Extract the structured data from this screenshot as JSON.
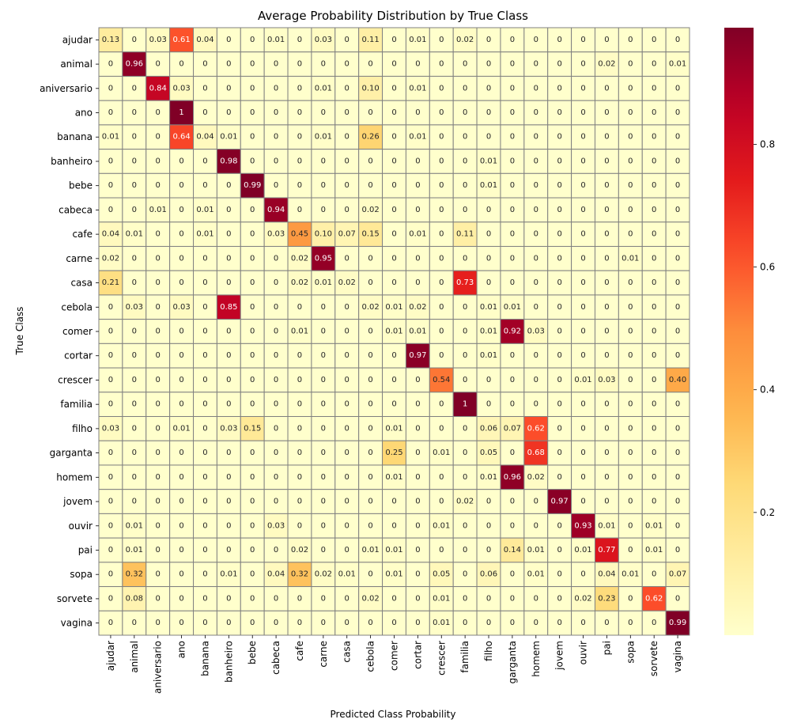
{
  "chart_data": {
    "type": "heatmap",
    "title": "Average Probability Distribution by True Class",
    "xlabel": "Predicted Class Probability",
    "ylabel": "True Class",
    "classes": [
      "ajudar",
      "animal",
      "aniversario",
      "ano",
      "banana",
      "banheiro",
      "bebe",
      "cabeca",
      "cafe",
      "carne",
      "casa",
      "cebola",
      "comer",
      "cortar",
      "crescer",
      "familia",
      "filho",
      "garganta",
      "homem",
      "jovem",
      "ouvir",
      "pai",
      "sopa",
      "sorvete",
      "vagina"
    ],
    "cell_labels": [
      [
        "0.13",
        "0",
        "0.03",
        "0.61",
        "0.04",
        "0",
        "0",
        "0.01",
        "0",
        "0.03",
        "0",
        "0.11",
        "0",
        "0.01",
        "0",
        "0.02",
        "0",
        "0",
        "0",
        "0",
        "0",
        "0",
        "0",
        "0",
        "0"
      ],
      [
        "0",
        "0.96",
        "0",
        "0",
        "0",
        "0",
        "0",
        "0",
        "0",
        "0",
        "0",
        "0",
        "0",
        "0",
        "0",
        "0",
        "0",
        "0",
        "0",
        "0",
        "0",
        "0.02",
        "0",
        "0",
        "0.01"
      ],
      [
        "0",
        "0",
        "0.84",
        "0.03",
        "0",
        "0",
        "0",
        "0",
        "0",
        "0.01",
        "0",
        "0.10",
        "0",
        "0.01",
        "0",
        "0",
        "0",
        "0",
        "0",
        "0",
        "0",
        "0",
        "0",
        "0",
        "0"
      ],
      [
        "0",
        "0",
        "0",
        "1",
        "0",
        "0",
        "0",
        "0",
        "0",
        "0",
        "0",
        "0",
        "0",
        "0",
        "0",
        "0",
        "0",
        "0",
        "0",
        "0",
        "0",
        "0",
        "0",
        "0",
        "0"
      ],
      [
        "0.01",
        "0",
        "0",
        "0.64",
        "0.04",
        "0.01",
        "0",
        "0",
        "0",
        "0.01",
        "0",
        "0.26",
        "0",
        "0.01",
        "0",
        "0",
        "0",
        "0",
        "0",
        "0",
        "0",
        "0",
        "0",
        "0",
        "0"
      ],
      [
        "0",
        "0",
        "0",
        "0",
        "0",
        "0.98",
        "0",
        "0",
        "0",
        "0",
        "0",
        "0",
        "0",
        "0",
        "0",
        "0",
        "0.01",
        "0",
        "0",
        "0",
        "0",
        "0",
        "0",
        "0",
        "0"
      ],
      [
        "0",
        "0",
        "0",
        "0",
        "0",
        "0",
        "0.99",
        "0",
        "0",
        "0",
        "0",
        "0",
        "0",
        "0",
        "0",
        "0",
        "0.01",
        "0",
        "0",
        "0",
        "0",
        "0",
        "0",
        "0",
        "0"
      ],
      [
        "0",
        "0",
        "0.01",
        "0",
        "0.01",
        "0",
        "0",
        "0.94",
        "0",
        "0",
        "0",
        "0.02",
        "0",
        "0",
        "0",
        "0",
        "0",
        "0",
        "0",
        "0",
        "0",
        "0",
        "0",
        "0",
        "0"
      ],
      [
        "0.04",
        "0.01",
        "0",
        "0",
        "0.01",
        "0",
        "0",
        "0.03",
        "0.45",
        "0.10",
        "0.07",
        "0.15",
        "0",
        "0.01",
        "0",
        "0.11",
        "0",
        "0",
        "0",
        "0",
        "0",
        "0",
        "0",
        "0",
        "0"
      ],
      [
        "0.02",
        "0",
        "0",
        "0",
        "0",
        "0",
        "0",
        "0",
        "0.02",
        "0.95",
        "0",
        "0",
        "0",
        "0",
        "0",
        "0",
        "0",
        "0",
        "0",
        "0",
        "0",
        "0",
        "0.01",
        "0",
        "0"
      ],
      [
        "0.21",
        "0",
        "0",
        "0",
        "0",
        "0",
        "0",
        "0",
        "0.02",
        "0.01",
        "0.02",
        "0",
        "0",
        "0",
        "0",
        "0.73",
        "0",
        "0",
        "0",
        "0",
        "0",
        "0",
        "0",
        "0",
        "0"
      ],
      [
        "0",
        "0.03",
        "0",
        "0.03",
        "0",
        "0.85",
        "0",
        "0",
        "0",
        "0",
        "0",
        "0.02",
        "0.01",
        "0.02",
        "0",
        "0",
        "0.01",
        "0.01",
        "0",
        "0",
        "0",
        "0",
        "0",
        "0",
        "0"
      ],
      [
        "0",
        "0",
        "0",
        "0",
        "0",
        "0",
        "0",
        "0",
        "0.01",
        "0",
        "0",
        "0",
        "0.01",
        "0.01",
        "0",
        "0",
        "0.01",
        "0.92",
        "0.03",
        "0",
        "0",
        "0",
        "0",
        "0",
        "0"
      ],
      [
        "0",
        "0",
        "0",
        "0",
        "0",
        "0",
        "0",
        "0",
        "0",
        "0",
        "0",
        "0",
        "0",
        "0.97",
        "0",
        "0",
        "0.01",
        "0",
        "0",
        "0",
        "0",
        "0",
        "0",
        "0",
        "0"
      ],
      [
        "0",
        "0",
        "0",
        "0",
        "0",
        "0",
        "0",
        "0",
        "0",
        "0",
        "0",
        "0",
        "0",
        "0",
        "0.54",
        "0",
        "0",
        "0",
        "0",
        "0",
        "0.01",
        "0.03",
        "0",
        "0",
        "0.40"
      ],
      [
        "0",
        "0",
        "0",
        "0",
        "0",
        "0",
        "0",
        "0",
        "0",
        "0",
        "0",
        "0",
        "0",
        "0",
        "0",
        "1",
        "0",
        "0",
        "0",
        "0",
        "0",
        "0",
        "0",
        "0",
        "0"
      ],
      [
        "0.03",
        "0",
        "0",
        "0.01",
        "0",
        "0.03",
        "0.15",
        "0",
        "0",
        "0",
        "0",
        "0",
        "0.01",
        "0",
        "0",
        "0",
        "0.06",
        "0.07",
        "0.62",
        "0",
        "0",
        "0",
        "0",
        "0",
        "0"
      ],
      [
        "0",
        "0",
        "0",
        "0",
        "0",
        "0",
        "0",
        "0",
        "0",
        "0",
        "0",
        "0",
        "0.25",
        "0",
        "0.01",
        "0",
        "0.05",
        "0",
        "0.68",
        "0",
        "0",
        "0",
        "0",
        "0",
        "0"
      ],
      [
        "0",
        "0",
        "0",
        "0",
        "0",
        "0",
        "0",
        "0",
        "0",
        "0",
        "0",
        "0",
        "0.01",
        "0",
        "0",
        "0",
        "0.01",
        "0.96",
        "0.02",
        "0",
        "0",
        "0",
        "0",
        "0",
        "0"
      ],
      [
        "0",
        "0",
        "0",
        "0",
        "0",
        "0",
        "0",
        "0",
        "0",
        "0",
        "0",
        "0",
        "0",
        "0",
        "0",
        "0.02",
        "0",
        "0",
        "0",
        "0.97",
        "0",
        "0",
        "0",
        "0",
        "0"
      ],
      [
        "0",
        "0.01",
        "0",
        "0",
        "0",
        "0",
        "0",
        "0.03",
        "0",
        "0",
        "0",
        "0",
        "0",
        "0",
        "0.01",
        "0",
        "0",
        "0",
        "0",
        "0",
        "0.93",
        "0.01",
        "0",
        "0.01",
        "0"
      ],
      [
        "0",
        "0.01",
        "0",
        "0",
        "0",
        "0",
        "0",
        "0",
        "0.02",
        "0",
        "0",
        "0.01",
        "0.01",
        "0",
        "0",
        "0",
        "0",
        "0.14",
        "0.01",
        "0",
        "0.01",
        "0.77",
        "0",
        "0.01",
        "0"
      ],
      [
        "0",
        "0.32",
        "0",
        "0",
        "0",
        "0.01",
        "0",
        "0.04",
        "0.32",
        "0.02",
        "0.01",
        "0",
        "0.01",
        "0",
        "0.05",
        "0",
        "0.06",
        "0",
        "0.01",
        "0",
        "0",
        "0.04",
        "0.01",
        "0",
        "0.07"
      ],
      [
        "0",
        "0.08",
        "0",
        "0",
        "0",
        "0",
        "0",
        "0",
        "0",
        "0",
        "0",
        "0.02",
        "0",
        "0",
        "0.01",
        "0",
        "0",
        "0",
        "0",
        "0",
        "0.02",
        "0.23",
        "0",
        "0.62",
        "0"
      ],
      [
        "0",
        "0",
        "0",
        "0",
        "0",
        "0",
        "0",
        "0",
        "0",
        "0",
        "0",
        "0",
        "0",
        "0",
        "0.01",
        "0",
        "0",
        "0",
        "0",
        "0",
        "0",
        "0",
        "0",
        "0",
        "0.99"
      ]
    ],
    "vmin": 0,
    "vmax": 0.99,
    "colormap": "YlOrRd",
    "colorbar_ticks": [
      0.2,
      0.4,
      0.6,
      0.8
    ],
    "colorbar_tick_labels": [
      "0.2",
      "0.4",
      "0.6",
      "0.8"
    ],
    "grid": true,
    "cell_border_color": "#808080"
  }
}
